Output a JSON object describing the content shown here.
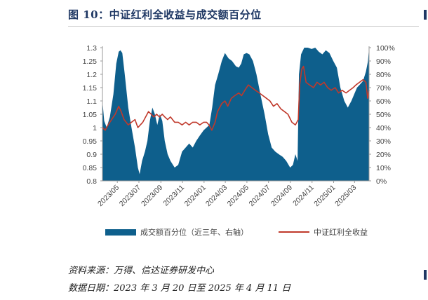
{
  "figure": {
    "title": "图 10：中证红利全收益与成交额百分位",
    "source": "资料来源：万得、信达证券研发中心",
    "date_range": "数据日期：2023 年 3 月 20 日至 2025 年 4 月 11 日"
  },
  "colors": {
    "area": "#0e5f8c",
    "line": "#c0392b",
    "title": "#1f3864"
  },
  "chart_data": {
    "type": "line",
    "x_type": "date",
    "x_range": [
      "2023-03-20",
      "2025-04-11"
    ],
    "x_ticks": [
      "2023/03",
      "2023/05",
      "2023/07",
      "2023/09",
      "2023/11",
      "2024/01",
      "2024/03",
      "2024/05",
      "2024/07",
      "2024/09",
      "2024/11",
      "2025/01",
      "2025/03"
    ],
    "y_left": {
      "ticks": [
        "0.8",
        "0.85",
        "0.9",
        "0.95",
        "1",
        "1.05",
        "1.1",
        "1.15",
        "1.2",
        "1.25",
        "1.3"
      ],
      "lim": [
        0.8,
        1.3
      ]
    },
    "y_right": {
      "ticks": [
        "0%",
        "10%",
        "20%",
        "30%",
        "40%",
        "50%",
        "60%",
        "70%",
        "80%",
        "90%",
        "100%"
      ],
      "lim": [
        0,
        100
      ]
    },
    "grid": false,
    "legend_position": "bottom",
    "series": [
      {
        "name": "成交额百分位（近三年、右轴）",
        "type": "area",
        "axis": "right",
        "unit": "%",
        "points": [
          [
            "2023-03-20",
            60
          ],
          [
            "2023-03-25",
            45
          ],
          [
            "2023-04-01",
            40
          ],
          [
            "2023-04-10",
            48
          ],
          [
            "2023-04-20",
            65
          ],
          [
            "2023-04-28",
            88
          ],
          [
            "2023-05-05",
            97
          ],
          [
            "2023-05-10",
            98
          ],
          [
            "2023-05-15",
            96
          ],
          [
            "2023-05-22",
            80
          ],
          [
            "2023-06-01",
            55
          ],
          [
            "2023-06-10",
            40
          ],
          [
            "2023-06-20",
            25
          ],
          [
            "2023-06-28",
            10
          ],
          [
            "2023-07-03",
            5
          ],
          [
            "2023-07-10",
            15
          ],
          [
            "2023-07-18",
            22
          ],
          [
            "2023-07-25",
            30
          ],
          [
            "2023-08-01",
            45
          ],
          [
            "2023-08-08",
            55
          ],
          [
            "2023-08-15",
            50
          ],
          [
            "2023-08-22",
            42
          ],
          [
            "2023-08-29",
            50
          ],
          [
            "2023-09-05",
            45
          ],
          [
            "2023-09-12",
            30
          ],
          [
            "2023-09-20",
            20
          ],
          [
            "2023-09-28",
            15
          ],
          [
            "2023-10-10",
            10
          ],
          [
            "2023-10-20",
            12
          ],
          [
            "2023-10-31",
            22
          ],
          [
            "2023-11-10",
            25
          ],
          [
            "2023-11-20",
            28
          ],
          [
            "2023-11-30",
            25
          ],
          [
            "2023-12-10",
            30
          ],
          [
            "2023-12-20",
            34
          ],
          [
            "2023-12-31",
            38
          ],
          [
            "2024-01-08",
            40
          ],
          [
            "2024-01-16",
            42
          ],
          [
            "2024-01-24",
            55
          ],
          [
            "2024-02-01",
            72
          ],
          [
            "2024-02-10",
            80
          ],
          [
            "2024-02-20",
            90
          ],
          [
            "2024-02-29",
            96
          ],
          [
            "2024-03-10",
            92
          ],
          [
            "2024-03-20",
            90
          ],
          [
            "2024-03-31",
            86
          ],
          [
            "2024-04-08",
            85
          ],
          [
            "2024-04-15",
            88
          ],
          [
            "2024-04-22",
            95
          ],
          [
            "2024-04-30",
            96
          ],
          [
            "2024-05-08",
            95
          ],
          [
            "2024-05-18",
            90
          ],
          [
            "2024-05-28",
            80
          ],
          [
            "2024-06-08",
            65
          ],
          [
            "2024-06-20",
            50
          ],
          [
            "2024-06-30",
            35
          ],
          [
            "2024-07-10",
            25
          ],
          [
            "2024-07-20",
            22
          ],
          [
            "2024-07-30",
            20
          ],
          [
            "2024-08-10",
            18
          ],
          [
            "2024-08-20",
            15
          ],
          [
            "2024-08-31",
            10
          ],
          [
            "2024-09-08",
            12
          ],
          [
            "2024-09-15",
            20
          ],
          [
            "2024-09-21",
            15
          ],
          [
            "2024-09-25",
            80
          ],
          [
            "2024-10-01",
            95
          ],
          [
            "2024-10-10",
            100
          ],
          [
            "2024-10-20",
            100
          ],
          [
            "2024-10-31",
            99
          ],
          [
            "2024-11-10",
            100
          ],
          [
            "2024-11-20",
            97
          ],
          [
            "2024-11-30",
            95
          ],
          [
            "2024-12-10",
            98
          ],
          [
            "2024-12-20",
            96
          ],
          [
            "2024-12-31",
            90
          ],
          [
            "2025-01-10",
            85
          ],
          [
            "2025-01-20",
            70
          ],
          [
            "2025-01-31",
            60
          ],
          [
            "2025-02-10",
            55
          ],
          [
            "2025-02-20",
            60
          ],
          [
            "2025-02-28",
            65
          ],
          [
            "2025-03-08",
            70
          ],
          [
            "2025-03-15",
            72
          ],
          [
            "2025-03-25",
            75
          ],
          [
            "2025-04-02",
            82
          ],
          [
            "2025-04-08",
            90
          ],
          [
            "2025-04-11",
            100
          ]
        ]
      },
      {
        "name": "中证红利全收益",
        "type": "line",
        "axis": "left",
        "points": [
          [
            "2023-03-20",
            1.0
          ],
          [
            "2023-03-28",
            0.99
          ],
          [
            "2023-04-05",
            1.01
          ],
          [
            "2023-04-15",
            1.03
          ],
          [
            "2023-04-25",
            1.05
          ],
          [
            "2023-05-05",
            1.08
          ],
          [
            "2023-05-12",
            1.06
          ],
          [
            "2023-05-20",
            1.03
          ],
          [
            "2023-06-01",
            1.01
          ],
          [
            "2023-06-10",
            1.02
          ],
          [
            "2023-06-20",
            1.03
          ],
          [
            "2023-06-28",
            1.0
          ],
          [
            "2023-07-05",
            1.01
          ],
          [
            "2023-07-12",
            1.02
          ],
          [
            "2023-07-20",
            1.04
          ],
          [
            "2023-07-28",
            1.06
          ],
          [
            "2023-08-05",
            1.05
          ],
          [
            "2023-08-12",
            1.04
          ],
          [
            "2023-08-20",
            1.05
          ],
          [
            "2023-08-28",
            1.04
          ],
          [
            "2023-09-05",
            1.05
          ],
          [
            "2023-09-12",
            1.04
          ],
          [
            "2023-09-20",
            1.03
          ],
          [
            "2023-09-28",
            1.04
          ],
          [
            "2023-10-10",
            1.02
          ],
          [
            "2023-10-20",
            1.02
          ],
          [
            "2023-10-31",
            1.01
          ],
          [
            "2023-11-10",
            1.02
          ],
          [
            "2023-11-20",
            1.01
          ],
          [
            "2023-11-30",
            1.02
          ],
          [
            "2023-12-10",
            1.02
          ],
          [
            "2023-12-20",
            1.01
          ],
          [
            "2023-12-31",
            1.02
          ],
          [
            "2024-01-08",
            1.02
          ],
          [
            "2024-01-15",
            1.01
          ],
          [
            "2024-01-23",
            0.99
          ],
          [
            "2024-02-01",
            1.02
          ],
          [
            "2024-02-08",
            1.06
          ],
          [
            "2024-02-20",
            1.09
          ],
          [
            "2024-02-29",
            1.1
          ],
          [
            "2024-03-08",
            1.08
          ],
          [
            "2024-03-18",
            1.11
          ],
          [
            "2024-03-28",
            1.12
          ],
          [
            "2024-04-08",
            1.13
          ],
          [
            "2024-04-16",
            1.12
          ],
          [
            "2024-04-25",
            1.14
          ],
          [
            "2024-05-05",
            1.16
          ],
          [
            "2024-05-15",
            1.15
          ],
          [
            "2024-05-25",
            1.14
          ],
          [
            "2024-06-05",
            1.13
          ],
          [
            "2024-06-15",
            1.12
          ],
          [
            "2024-06-25",
            1.11
          ],
          [
            "2024-07-05",
            1.1
          ],
          [
            "2024-07-15",
            1.08
          ],
          [
            "2024-07-25",
            1.09
          ],
          [
            "2024-08-05",
            1.07
          ],
          [
            "2024-08-15",
            1.06
          ],
          [
            "2024-08-25",
            1.05
          ],
          [
            "2024-09-05",
            1.02
          ],
          [
            "2024-09-15",
            1.01
          ],
          [
            "2024-09-23",
            1.03
          ],
          [
            "2024-09-27",
            1.16
          ],
          [
            "2024-10-03",
            1.22
          ],
          [
            "2024-10-08",
            1.23
          ],
          [
            "2024-10-15",
            1.17
          ],
          [
            "2024-10-25",
            1.16
          ],
          [
            "2024-11-05",
            1.15
          ],
          [
            "2024-11-15",
            1.17
          ],
          [
            "2024-11-25",
            1.16
          ],
          [
            "2024-12-05",
            1.17
          ],
          [
            "2024-12-15",
            1.15
          ],
          [
            "2024-12-25",
            1.14
          ],
          [
            "2025-01-05",
            1.15
          ],
          [
            "2025-01-15",
            1.13
          ],
          [
            "2025-01-25",
            1.14
          ],
          [
            "2025-02-05",
            1.13
          ],
          [
            "2025-02-15",
            1.14
          ],
          [
            "2025-02-25",
            1.15
          ],
          [
            "2025-03-05",
            1.16
          ],
          [
            "2025-03-15",
            1.17
          ],
          [
            "2025-03-25",
            1.18
          ],
          [
            "2025-04-02",
            1.17
          ],
          [
            "2025-04-07",
            1.11
          ],
          [
            "2025-04-11",
            1.14
          ]
        ]
      }
    ]
  }
}
